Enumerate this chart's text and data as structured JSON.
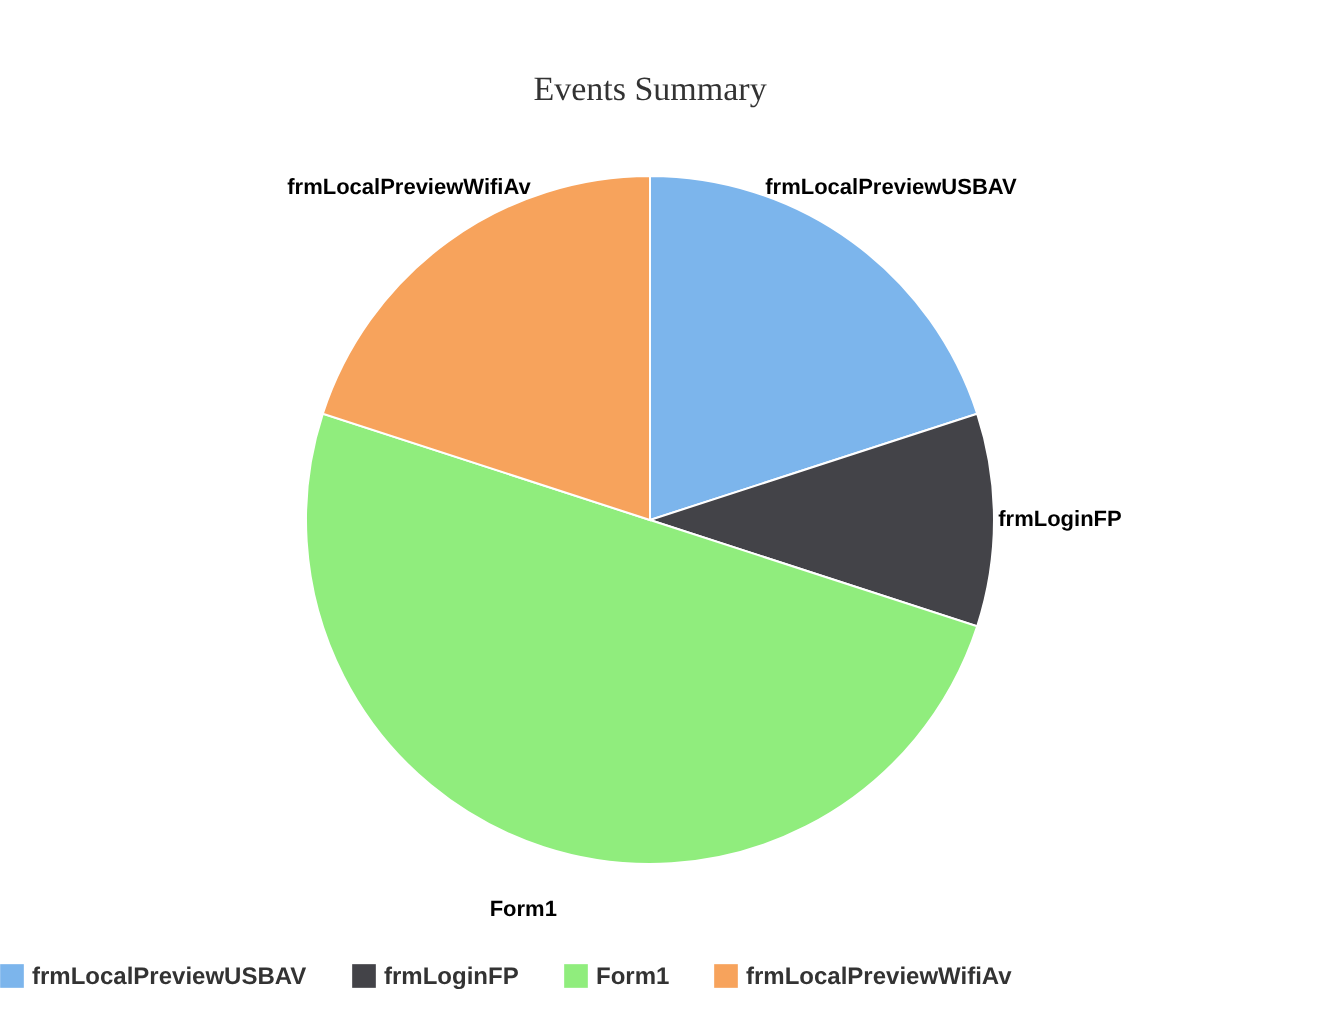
{
  "chart_data": {
    "type": "pie",
    "title": "Events Summary",
    "categories": [
      "frmLocalPreviewUSBAV",
      "frmLoginFP",
      "Form1",
      "frmLocalPreviewWifiAv"
    ],
    "values": [
      20,
      10,
      50,
      20
    ],
    "colors": [
      "#7cb5ec",
      "#434348",
      "#90ed7d",
      "#f7a35c"
    ],
    "legend": "bottom"
  }
}
